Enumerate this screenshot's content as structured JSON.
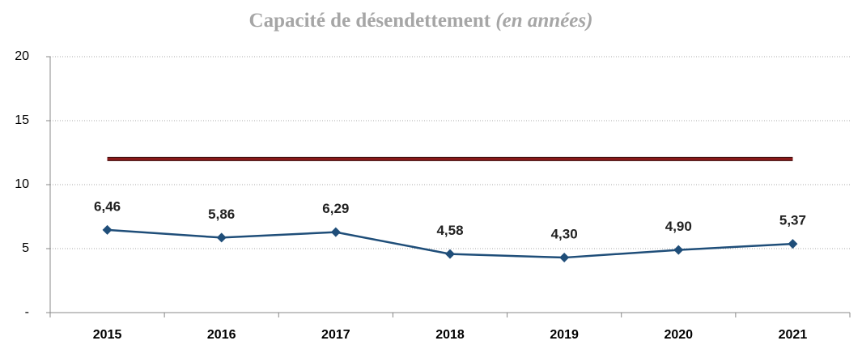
{
  "chart_data": {
    "type": "line",
    "title": "Capacité de désendettement",
    "subtitle": "(en années)",
    "categories": [
      "2015",
      "2016",
      "2017",
      "2018",
      "2019",
      "2020",
      "2021"
    ],
    "series": [
      {
        "color": "#1f4e79",
        "values": [
          6.46,
          5.86,
          6.29,
          4.58,
          4.3,
          4.9,
          5.37
        ],
        "value_labels": [
          "6,46",
          "5,86",
          "6,29",
          "4,58",
          "4,30",
          "4,90",
          "5,37"
        ]
      },
      {
        "color": "#8b1a1a",
        "values": [
          12,
          12,
          12,
          12,
          12,
          12,
          12
        ]
      }
    ],
    "ylim": [
      0,
      20
    ],
    "yticks": [
      {
        "value": 0,
        "label": "-"
      },
      5,
      10,
      15,
      20
    ],
    "grid": true
  }
}
